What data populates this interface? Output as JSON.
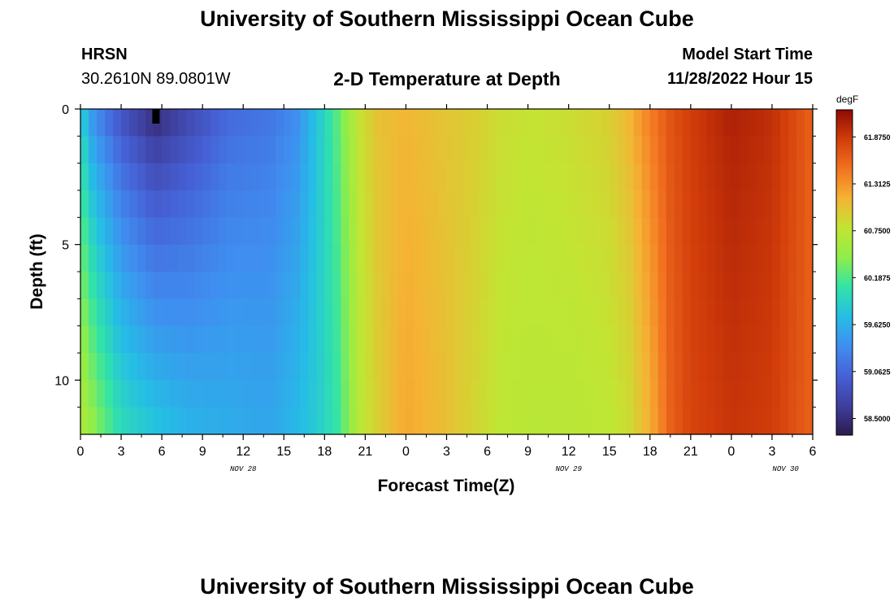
{
  "header": {
    "title": "University of Southern Mississippi Ocean Cube",
    "station": "HRSN",
    "coordinates": "30.2610N  89.0801W",
    "subtitle": "2-D Temperature at Depth",
    "model_start_label": "Model Start Time",
    "model_start_value": "11/28/2022 Hour 15"
  },
  "footer": {
    "title": "University of Southern Mississippi Ocean Cube"
  },
  "chart_data": {
    "type": "heatmap",
    "xlabel": "Forecast Time(Z)",
    "ylabel": "Depth (ft)",
    "x_range_hours": [
      0,
      54
    ],
    "y_range_ft": [
      0,
      12
    ],
    "y_inverted": true,
    "x_ticks": [
      "0",
      "3",
      "6",
      "9",
      "12",
      "15",
      "18",
      "21",
      "0",
      "3",
      "6",
      "9",
      "12",
      "15",
      "18",
      "21",
      "0",
      "3",
      "6"
    ],
    "x_tick_hours": [
      0,
      3,
      6,
      9,
      12,
      15,
      18,
      21,
      24,
      27,
      30,
      33,
      36,
      39,
      42,
      45,
      48,
      51,
      54
    ],
    "date_labels": [
      {
        "text": "NOV 28",
        "hour": 12
      },
      {
        "text": "NOV 29",
        "hour": 36
      },
      {
        "text": "NOV 30",
        "hour": 52
      }
    ],
    "y_ticks": [
      "0",
      "5",
      "10"
    ],
    "y_tick_values": [
      0,
      5,
      10
    ],
    "colorbar": {
      "unit": "degF",
      "min": 58.3,
      "max": 62.2,
      "labels": [
        "61.8750",
        "61.3125",
        "60.7500",
        "60.1875",
        "59.6250",
        "59.0625",
        "58.5000"
      ],
      "label_values": [
        61.875,
        61.3125,
        60.75,
        60.1875,
        59.625,
        59.0625,
        58.5
      ],
      "colormap": [
        "#2d1b4e",
        "#3f3f9e",
        "#4661d6",
        "#3f8ef0",
        "#25bde6",
        "#31e3a8",
        "#8dee4a",
        "#c2e533",
        "#f5b334",
        "#f37321",
        "#d23d0a",
        "#8f0a03"
      ]
    },
    "time_profile": [
      {
        "hour": 0,
        "surface": 59.85,
        "bottom": 60.7
      },
      {
        "hour": 1,
        "surface": 59.3,
        "bottom": 60.45
      },
      {
        "hour": 3,
        "surface": 58.8,
        "bottom": 60.0
      },
      {
        "hour": 5.5,
        "surface": 58.4,
        "bottom": 59.8
      },
      {
        "hour": 8,
        "surface": 58.7,
        "bottom": 59.65
      },
      {
        "hour": 11,
        "surface": 59.05,
        "bottom": 59.6
      },
      {
        "hour": 14,
        "surface": 59.15,
        "bottom": 59.55
      },
      {
        "hour": 16,
        "surface": 59.35,
        "bottom": 59.7
      },
      {
        "hour": 17.5,
        "surface": 59.8,
        "bottom": 59.85
      },
      {
        "hour": 19,
        "surface": 60.25,
        "bottom": 60.1
      },
      {
        "hour": 20.5,
        "surface": 60.8,
        "bottom": 60.7
      },
      {
        "hour": 22,
        "surface": 61.05,
        "bottom": 60.95
      },
      {
        "hour": 24,
        "surface": 61.1,
        "bottom": 61.2
      },
      {
        "hour": 27,
        "surface": 61.0,
        "bottom": 61.05
      },
      {
        "hour": 29,
        "surface": 60.95,
        "bottom": 60.9
      },
      {
        "hour": 31,
        "surface": 60.85,
        "bottom": 60.75
      },
      {
        "hour": 33,
        "surface": 60.8,
        "bottom": 60.72
      },
      {
        "hour": 36,
        "surface": 60.85,
        "bottom": 60.72
      },
      {
        "hour": 39,
        "surface": 60.95,
        "bottom": 60.75
      },
      {
        "hour": 40.5,
        "surface": 61.15,
        "bottom": 60.85
      },
      {
        "hour": 42,
        "surface": 61.45,
        "bottom": 61.15
      },
      {
        "hour": 43.5,
        "surface": 61.7,
        "bottom": 61.6
      },
      {
        "hour": 45,
        "surface": 61.85,
        "bottom": 61.8
      },
      {
        "hour": 48,
        "surface": 62.05,
        "bottom": 61.9
      },
      {
        "hour": 51,
        "surface": 61.95,
        "bottom": 61.85
      },
      {
        "hour": 54,
        "surface": 61.6,
        "bottom": 61.6
      }
    ]
  }
}
